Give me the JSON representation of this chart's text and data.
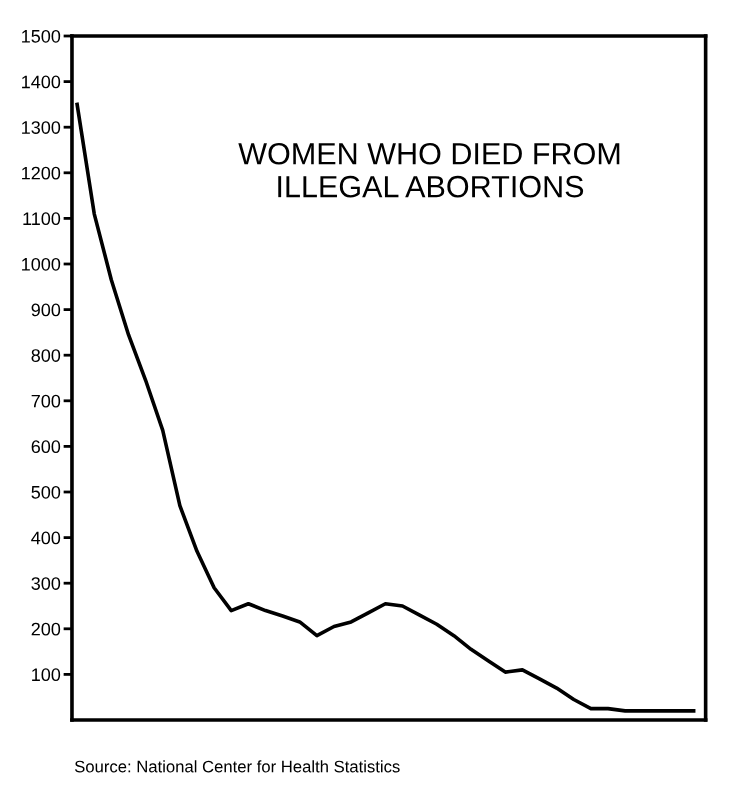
{
  "chart_data": {
    "type": "line",
    "title": "WOMEN WHO DIED FROM\nILLEGAL ABORTIONS",
    "categories": [
      null,
      null,
      null,
      null,
      null,
      null,
      null,
      null,
      null,
      null,
      null,
      null,
      null,
      null,
      null,
      null,
      null,
      null,
      null,
      null,
      null,
      null,
      null,
      null,
      null,
      null,
      null,
      null,
      null,
      null,
      null,
      null,
      null,
      null,
      null,
      null,
      null
    ],
    "series": [
      {
        "color": "#000000",
        "values": [
          1350,
          1110,
          965,
          845,
          745,
          635,
          470,
          370,
          290,
          240,
          255,
          240,
          228,
          215,
          185,
          205,
          215,
          235,
          255,
          250,
          230,
          210,
          185,
          155,
          130,
          105,
          110,
          90,
          70,
          45,
          25,
          25,
          20,
          20,
          20,
          20,
          20
        ]
      }
    ],
    "ylim": [
      0,
      1500
    ],
    "yticks": [
      100,
      200,
      300,
      400,
      500,
      600,
      700,
      800,
      900,
      1000,
      1100,
      1200,
      1300,
      1400,
      1500
    ],
    "grid": false,
    "legend": false,
    "marker": "none",
    "line_style": "solid",
    "tick_labels": "y",
    "annotations": [
      "Source: National Center for Health Statistics"
    ]
  }
}
